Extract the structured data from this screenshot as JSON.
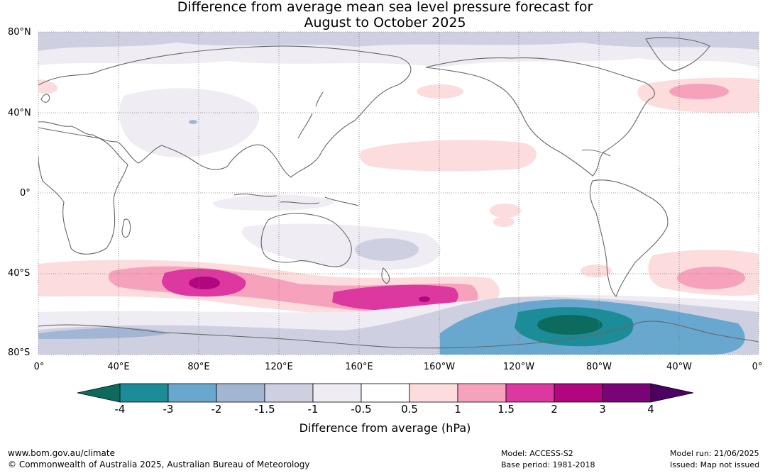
{
  "title": {
    "line1": "Difference from average mean sea level pressure forecast for",
    "line2": "August to October 2025"
  },
  "axes": {
    "lat_labels": [
      "80°N",
      "40°N",
      "0°",
      "40°S",
      "80°S"
    ],
    "lon_labels": [
      "0°",
      "40°E",
      "80°E",
      "120°E",
      "160°E",
      "160°W",
      "120°W",
      "80°W",
      "40°W",
      "0°"
    ]
  },
  "legend": {
    "unit_label": "Difference from average (hPa)",
    "ticks": [
      "-4",
      "-3",
      "-2",
      "-1.5",
      "-1",
      "-0.5",
      "0.5",
      "1",
      "1.5",
      "2",
      "3",
      "4"
    ],
    "colors": [
      "#0d6b5e",
      "#1c8c98",
      "#68a8cf",
      "#a2b6d4",
      "#ced0e2",
      "#efedf3",
      "#ffffff",
      "#fcdcdc",
      "#f7a2bc",
      "#dd37a0",
      "#b1067f",
      "#7a0477",
      "#4b0062"
    ]
  },
  "footer": {
    "url": "www.bom.gov.au/climate",
    "copyright": "© Commonwealth of Australia 2025, Australian Bureau of Meteorology",
    "model": "Model: ACCESS-S2",
    "base_period": "Base period: 1981-2018",
    "model_run": "Model run: 21/06/2025",
    "issued": "Issued: Map not issued"
  }
}
